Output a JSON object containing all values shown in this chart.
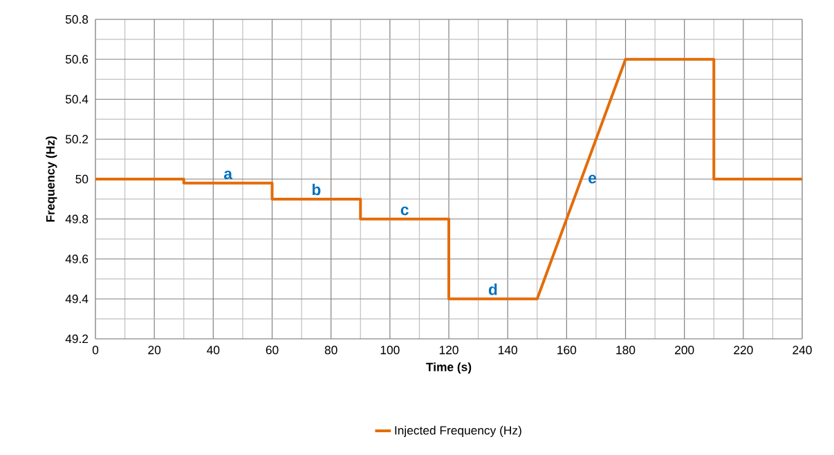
{
  "chart_data": {
    "type": "line",
    "xlabel": "Time (s)",
    "ylabel": "Frequency (Hz)",
    "series": [
      {
        "name": "Injected Frequency (Hz)",
        "color": "#e36c09",
        "x": [
          0,
          30,
          30,
          60,
          60,
          90,
          90,
          120,
          120,
          150,
          180,
          210,
          210,
          240
        ],
        "values": [
          50,
          50,
          49.98,
          49.98,
          49.9,
          49.9,
          49.8,
          49.8,
          49.4,
          49.4,
          50.6,
          50.6,
          50,
          50
        ]
      }
    ],
    "xlim": [
      0,
      240
    ],
    "xticks": [
      0,
      20,
      40,
      60,
      80,
      100,
      120,
      140,
      160,
      180,
      200,
      220,
      240
    ],
    "ylim": [
      49.2,
      50.8
    ],
    "yticks": [
      49.2,
      49.4,
      49.6,
      49.8,
      50,
      50.2,
      50.4,
      50.6,
      50.8
    ],
    "annotations": [
      {
        "text": "a",
        "x": 45,
        "y": 49.98
      },
      {
        "text": "b",
        "x": 75,
        "y": 49.9
      },
      {
        "text": "c",
        "x": 105,
        "y": 49.8
      },
      {
        "text": "d",
        "x": 135,
        "y": 49.4
      },
      {
        "text": "e",
        "x": 165,
        "y": 50
      }
    ],
    "grid": true,
    "legend": "bottom",
    "marker": "none",
    "line_style": "solid"
  }
}
